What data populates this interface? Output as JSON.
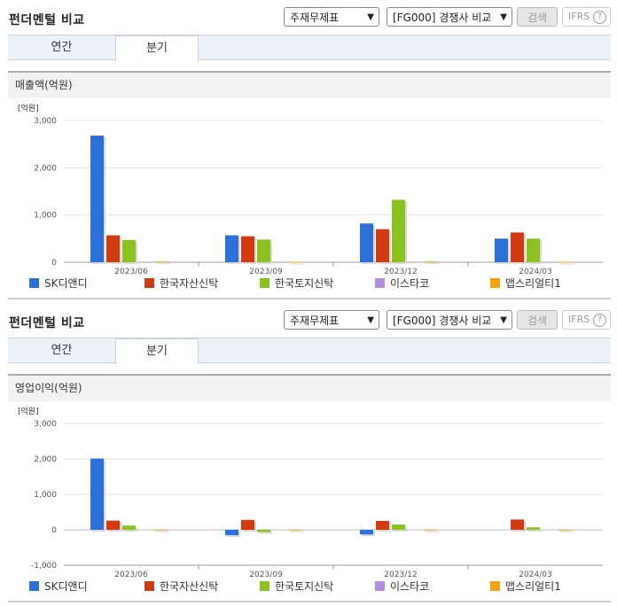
{
  "panels": [
    {
      "title": "펀더멘털 비교",
      "select_statement": "주재무제표",
      "select_compare": "[FG000] 경쟁사 비교",
      "search_label": "검색",
      "ifrs_label": "IFRS",
      "ifrs_help": "?",
      "tabs": [
        "연간",
        "분기"
      ],
      "active_tab": "분기",
      "section_label": "매출액(억원)"
    },
    {
      "title": "펀더멘털 비교",
      "select_statement": "주재무제표",
      "select_compare": "[FG000] 경쟁사 비교",
      "search_label": "검색",
      "ifrs_label": "IFRS",
      "ifrs_help": "?",
      "tabs": [
        "연간",
        "분기"
      ],
      "active_tab": "분기",
      "section_label": "영업이익(억원)"
    }
  ],
  "legend": [
    {
      "name": "SK디앤디",
      "color": "#2b6fdb"
    },
    {
      "name": "한국자산신탁",
      "color": "#d23a0f"
    },
    {
      "name": "한국토지신탁",
      "color": "#8cc21e"
    },
    {
      "name": "이스타코",
      "color": "#b48fe0"
    },
    {
      "name": "맵스리얼티1",
      "color": "#f7a20b"
    }
  ],
  "chart_data": [
    {
      "type": "bar",
      "unit_label": "[억원]",
      "categories": [
        "2023/06",
        "2023/09",
        "2023/12",
        "2024/03"
      ],
      "ylim": [
        0,
        3000
      ],
      "yticks": [
        0,
        1000,
        2000,
        3000
      ],
      "ytick_labels": [
        "0",
        "1,000",
        "2,000",
        "3,000"
      ],
      "grid": true,
      "legend_position": "bottom",
      "series": [
        {
          "name": "SK디앤디",
          "values": [
            2680,
            570,
            820,
            500
          ]
        },
        {
          "name": "한국자산신탁",
          "values": [
            570,
            550,
            700,
            630
          ]
        },
        {
          "name": "한국토지신탁",
          "values": [
            470,
            480,
            1320,
            500
          ]
        },
        {
          "name": "이스타코",
          "values": [
            0,
            0,
            0,
            0
          ]
        },
        {
          "name": "맵스리얼티1",
          "values": [
            15,
            10,
            15,
            10
          ]
        }
      ]
    },
    {
      "type": "bar",
      "unit_label": "[억원]",
      "categories": [
        "2023/06",
        "2023/09",
        "2023/12",
        "2024/03"
      ],
      "ylim": [
        -1000,
        3000
      ],
      "yticks": [
        -1000,
        0,
        1000,
        2000,
        3000
      ],
      "ytick_labels": [
        "-1,000",
        "0",
        "1,000",
        "2,000",
        "3,000"
      ],
      "grid": true,
      "legend_position": "bottom",
      "series": [
        {
          "name": "SK디앤디",
          "values": [
            2010,
            -150,
            -130,
            0
          ]
        },
        {
          "name": "한국자산신탁",
          "values": [
            260,
            280,
            250,
            290
          ]
        },
        {
          "name": "한국토지신탁",
          "values": [
            120,
            -60,
            150,
            70
          ]
        },
        {
          "name": "이스타코",
          "values": [
            0,
            0,
            0,
            0
          ]
        },
        {
          "name": "맵스리얼티1",
          "values": [
            5,
            5,
            5,
            5
          ]
        }
      ]
    }
  ]
}
